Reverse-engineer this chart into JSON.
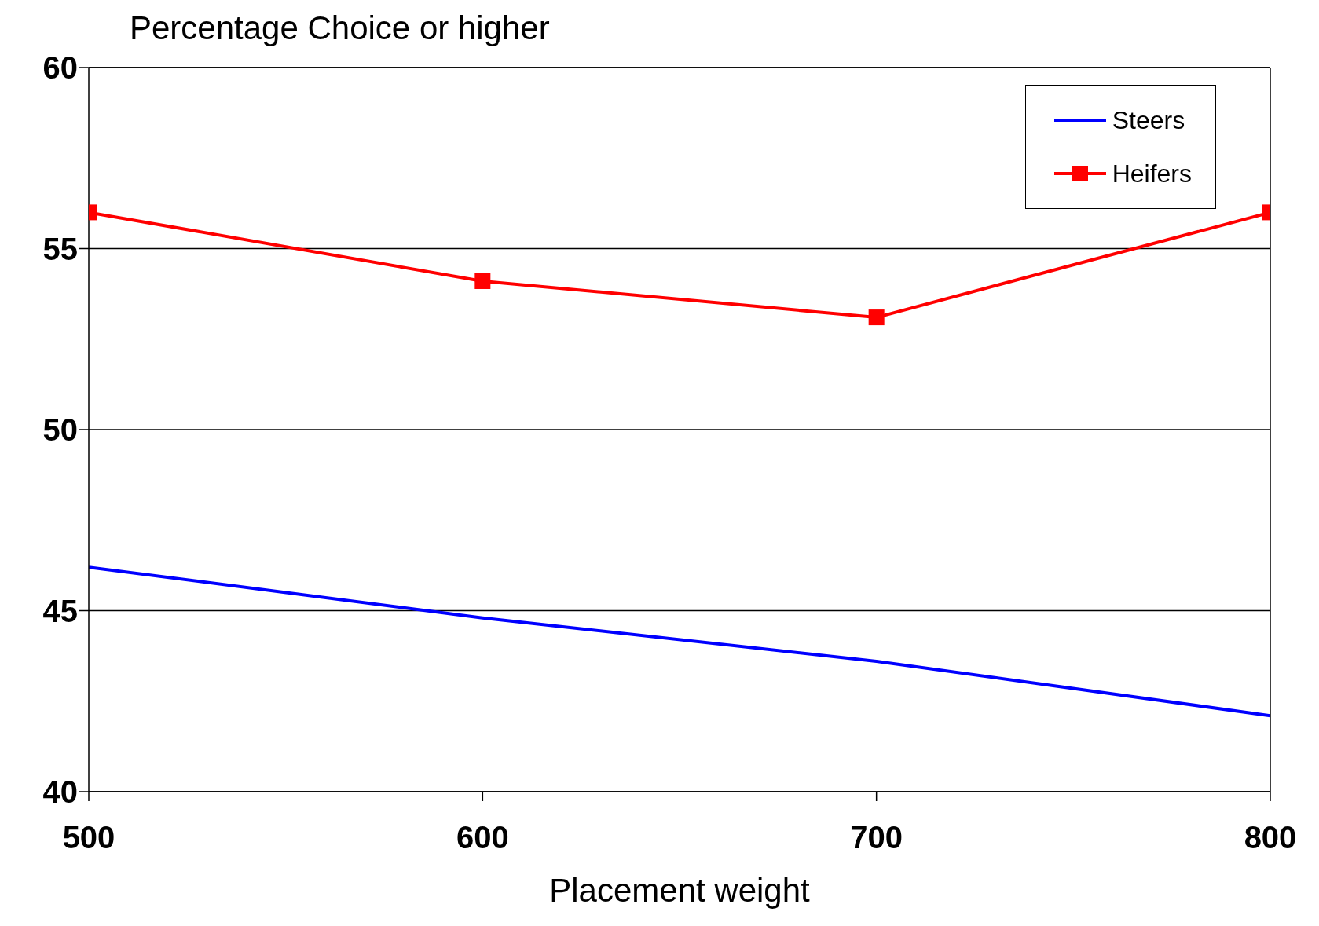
{
  "chart_data": {
    "type": "line",
    "title": "Percentage Choice or higher",
    "xlabel": "Placement weight",
    "x": [
      500,
      600,
      700,
      800
    ],
    "series": [
      {
        "name": "Steers",
        "color": "#0000ff",
        "values": [
          46.2,
          44.8,
          43.6,
          42.1
        ],
        "marker": "none"
      },
      {
        "name": "Heifers",
        "color": "#ff0000",
        "values": [
          56.0,
          54.1,
          53.1,
          56.0
        ],
        "marker": "square"
      }
    ],
    "xlim": [
      500,
      800
    ],
    "xticks": [
      500,
      600,
      700,
      800
    ],
    "ylim": [
      40,
      60
    ],
    "yticks": [
      40,
      45,
      50,
      55,
      60
    ],
    "grid": "y",
    "legend": "top right",
    "line_style": "solid"
  }
}
